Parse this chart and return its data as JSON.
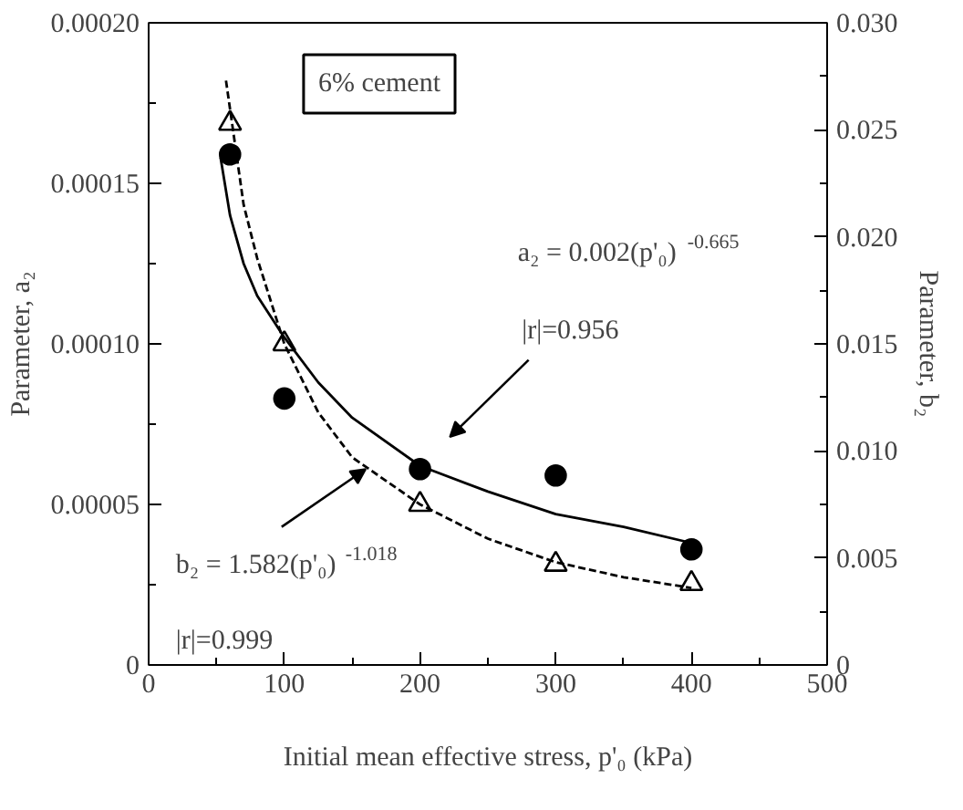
{
  "chart_data": {
    "type": "scatter",
    "xlabel": "Initial mean effective stress, p'₀ (kPa)",
    "ylabel": "Parameter, a₂",
    "y2label": "Parameter, b₂",
    "xlim": [
      0,
      500
    ],
    "xticks": [
      0,
      100,
      200,
      300,
      400,
      500
    ],
    "ylim": [
      0,
      0.0002
    ],
    "yticks": [
      {
        "value": 0,
        "label": "0"
      },
      {
        "value": 5e-05,
        "label": "0.00005"
      },
      {
        "value": 0.0001,
        "label": "0.00010"
      },
      {
        "value": 0.00015,
        "label": "0.00015"
      },
      {
        "value": 0.0002,
        "label": "0.00020"
      }
    ],
    "y2lim": [
      0,
      0.03
    ],
    "y2ticks": [
      {
        "value": 0,
        "label": "0"
      },
      {
        "value": 0.005,
        "label": "0.005"
      },
      {
        "value": 0.01,
        "label": "0.010"
      },
      {
        "value": 0.015,
        "label": "0.015"
      },
      {
        "value": 0.02,
        "label": "0.020"
      },
      {
        "value": 0.025,
        "label": "0.025"
      },
      {
        "value": 0.03,
        "label": "0.030"
      }
    ],
    "grid": false,
    "series": [
      {
        "color": "#000000",
        "marker": "circle",
        "x": [
          60,
          100,
          200,
          300,
          400
        ],
        "values": [
          0.000159,
          8.3e-05,
          6.1e-05,
          5.9e-05,
          3.6e-05
        ]
      },
      {
        "color": "#000000",
        "marker": "triangle",
        "axis": "y2",
        "x": [
          60,
          100,
          200,
          300,
          400
        ],
        "values": [
          0.0253,
          0.015,
          0.0075,
          0.0047,
          0.0038
        ]
      },
      {
        "type": "line",
        "color": "#000000",
        "line_style": "solid",
        "x": [
          53,
          60,
          70,
          80,
          100,
          125,
          150,
          200,
          250,
          300,
          350,
          400
        ],
        "values": [
          0.000158,
          0.00014,
          0.000125,
          0.000115,
          0.000102,
          8.8e-05,
          7.7e-05,
          6.2e-05,
          5.4e-05,
          4.7e-05,
          4.3e-05,
          3.8e-05
        ]
      },
      {
        "type": "line",
        "color": "#000000",
        "line_style": "dashed",
        "axis": "y2",
        "x": [
          57,
          70,
          80,
          100,
          125,
          150,
          200,
          250,
          300,
          350,
          400
        ],
        "values": [
          0.0273,
          0.0215,
          0.019,
          0.015,
          0.0118,
          0.0097,
          0.0075,
          0.0059,
          0.0048,
          0.0041,
          0.0036
        ]
      }
    ],
    "annotations": [
      "6% cement",
      "a₂ = 0.002(p'₀)$^{-0.665}$",
      "|r|=0.956",
      {
        "text": "b₂ = 1.582(p'₀)$^{-1.018}$",
        "x": 160,
        "y": 6.1e-05
      },
      "|r|=0.999"
    ]
  }
}
